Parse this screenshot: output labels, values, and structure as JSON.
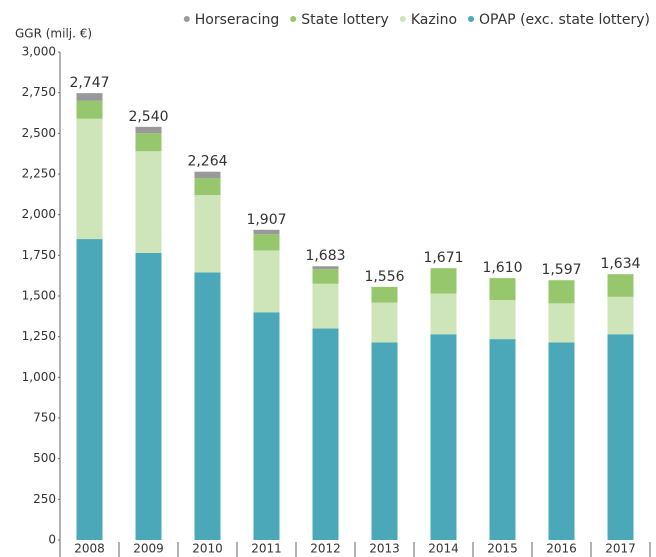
{
  "chart_data": {
    "type": "stacked_bar",
    "ylabel": "GGR (milj. €)",
    "categories": [
      "2008",
      "2009",
      "2010",
      "2011",
      "2012",
      "2013",
      "2014",
      "2015",
      "2016",
      "2017"
    ],
    "series": [
      {
        "name": "OPAP (exc. state lottery)",
        "color": "#4aa8b8",
        "values": [
          1850,
          1765,
          1645,
          1400,
          1300,
          1215,
          1265,
          1235,
          1215,
          1265
        ]
      },
      {
        "name": "Kazino",
        "color": "#cde5b8",
        "values": [
          740,
          625,
          475,
          380,
          275,
          245,
          250,
          240,
          240,
          230
        ]
      },
      {
        "name": "State lottery",
        "color": "#96c76c",
        "values": [
          110,
          110,
          105,
          100,
          90,
          96,
          156,
          135,
          142,
          139
        ]
      },
      {
        "name": "Horseracing",
        "color": "#999999",
        "values": [
          47,
          40,
          39,
          27,
          18,
          0,
          0,
          0,
          0,
          0
        ]
      }
    ],
    "totals": [
      2747,
      2540,
      2264,
      1907,
      1683,
      1556,
      1671,
      1610,
      1597,
      1634
    ],
    "total_labels": [
      "2,747",
      "2,540",
      "2,264",
      "1,907",
      "1,683",
      "1,556",
      "1,671",
      "1,610",
      "1,597",
      "1,634"
    ],
    "ylim": [
      0,
      3000
    ],
    "yticks": [
      0,
      250,
      500,
      750,
      {
        "value": 1000,
        "label": "1,000"
      },
      {
        "value": 1250,
        "label": "1,250"
      },
      {
        "value": 1500,
        "label": "1,500"
      },
      {
        "value": 1750,
        "label": "1,750"
      },
      {
        "value": 2000,
        "label": "2,000"
      },
      {
        "value": 2250,
        "label": "2,250"
      },
      {
        "value": 2500,
        "label": "2,500"
      },
      {
        "value": 2750,
        "label": "2,750"
      },
      {
        "value": 3000,
        "label": "3,000"
      }
    ],
    "legend": "top"
  }
}
